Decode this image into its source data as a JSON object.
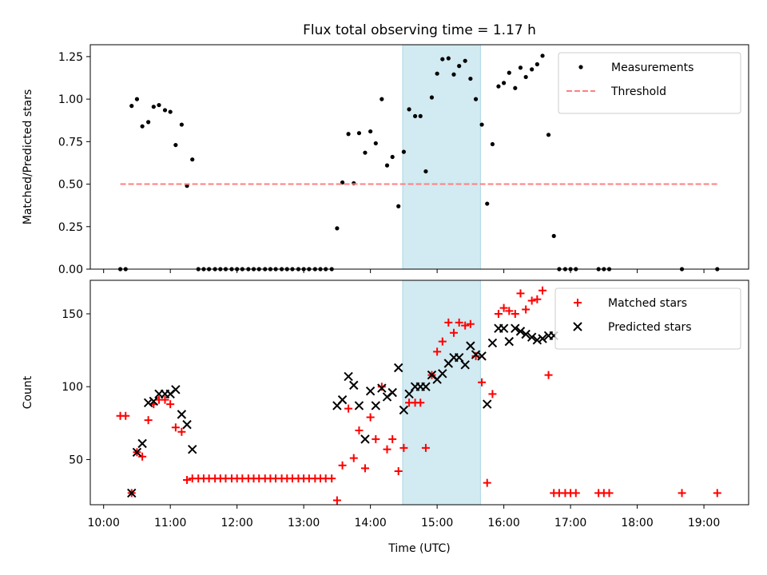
{
  "figure": {
    "title": "Flux total observing time = 1.17 h",
    "xlabel": "Time (UTC)",
    "x_ticks": [
      "10:00",
      "11:00",
      "12:00",
      "13:00",
      "14:00",
      "15:00",
      "16:00",
      "17:00",
      "18:00",
      "19:00"
    ],
    "shaded_interval": [
      "14:29",
      "15:39"
    ],
    "shade_color": "#add8e6"
  },
  "chart_data": [
    {
      "type": "scatter",
      "x_units": "time of day (UTC), hours",
      "xlim": [
        9.8,
        19.67
      ],
      "ylabel": "Matched/Predicted stars",
      "ylim": [
        0,
        1.32
      ],
      "y_ticks": [
        "0.00",
        "0.25",
        "0.50",
        "0.75",
        "1.00",
        "1.25"
      ],
      "legend": "top-right",
      "series": [
        {
          "name": "Measurements",
          "color": "#000000",
          "marker": "dot",
          "x": [
            10.25,
            10.33,
            10.42,
            10.5,
            10.58,
            10.67,
            10.75,
            10.83,
            10.92,
            11.0,
            11.08,
            11.17,
            11.25,
            11.33,
            11.42,
            11.5,
            11.58,
            11.67,
            11.75,
            11.83,
            11.92,
            12.0,
            12.08,
            12.17,
            12.25,
            12.33,
            12.42,
            12.5,
            12.58,
            12.67,
            12.75,
            12.83,
            12.92,
            13.0,
            13.08,
            13.17,
            13.25,
            13.33,
            13.42,
            13.5,
            13.58,
            13.67,
            13.75,
            13.83,
            13.92,
            14.0,
            14.08,
            14.17,
            14.25,
            14.33,
            14.42,
            14.5,
            14.58,
            14.67,
            14.75,
            14.83,
            14.92,
            15.0,
            15.08,
            15.17,
            15.25,
            15.33,
            15.42,
            15.5,
            15.58,
            15.67,
            15.75,
            15.83,
            15.92,
            16.0,
            16.08,
            16.17,
            16.25,
            16.33,
            16.42,
            16.5,
            16.58,
            16.67,
            16.75,
            16.83,
            16.92,
            17.0,
            17.08,
            17.42,
            17.5,
            17.58,
            18.67,
            19.2
          ],
          "y": [
            0,
            0,
            0.96,
            1.0,
            0.84,
            0.865,
            0.955,
            0.965,
            0.935,
            0.925,
            0.73,
            0.85,
            0.49,
            0.645,
            0,
            0,
            0,
            0,
            0,
            0,
            0,
            0,
            0,
            0,
            0,
            0,
            0,
            0,
            0,
            0,
            0,
            0,
            0,
            0,
            0,
            0,
            0,
            0,
            0,
            0.24,
            0.51,
            0.795,
            0.505,
            0.8,
            0.685,
            0.81,
            0.74,
            1.0,
            0.61,
            0.66,
            0.37,
            0.69,
            0.94,
            0.9,
            0.9,
            0.575,
            1.01,
            1.15,
            1.235,
            1.24,
            1.145,
            1.195,
            1.225,
            1.12,
            1.0,
            0.85,
            0.385,
            0.735,
            1.075,
            1.095,
            1.155,
            1.065,
            1.185,
            1.13,
            1.175,
            1.205,
            1.255,
            0.79,
            0.195,
            0,
            0,
            0,
            0,
            0,
            0,
            0,
            0,
            0
          ]
        },
        {
          "name": "Threshold",
          "color": "#ff7f7f",
          "style": "dashed",
          "x": [
            10.25,
            19.2
          ],
          "y": [
            0.5,
            0.5
          ]
        }
      ]
    },
    {
      "type": "scatter",
      "x_units": "time of day (UTC), hours",
      "xlim": [
        9.8,
        19.67
      ],
      "ylabel": "Count",
      "ylim": [
        19,
        173
      ],
      "y_ticks": [
        "50",
        "100",
        "150"
      ],
      "legend": "top-right",
      "series": [
        {
          "name": "Matched stars",
          "color": "#ff0000",
          "marker": "plus",
          "x": [
            10.25,
            10.33,
            10.42,
            10.5,
            10.58,
            10.67,
            10.75,
            10.83,
            10.92,
            11.0,
            11.08,
            11.17,
            11.25,
            11.33,
            11.42,
            11.5,
            11.58,
            11.67,
            11.75,
            11.83,
            11.92,
            12.0,
            12.08,
            12.17,
            12.25,
            12.33,
            12.42,
            12.5,
            12.58,
            12.67,
            12.75,
            12.83,
            12.92,
            13.0,
            13.08,
            13.17,
            13.25,
            13.33,
            13.42,
            13.5,
            13.58,
            13.67,
            13.75,
            13.83,
            13.92,
            14.0,
            14.08,
            14.17,
            14.25,
            14.33,
            14.42,
            14.5,
            14.58,
            14.67,
            14.75,
            14.83,
            14.92,
            15.0,
            15.08,
            15.17,
            15.25,
            15.33,
            15.42,
            15.5,
            15.58,
            15.67,
            15.75,
            15.83,
            15.92,
            16.0,
            16.08,
            16.17,
            16.25,
            16.33,
            16.42,
            16.5,
            16.58,
            16.67,
            16.75,
            16.83,
            16.92,
            17.0,
            17.08,
            17.42,
            17.5,
            17.58,
            18.67,
            19.2
          ],
          "y": [
            80,
            80,
            27,
            55,
            52,
            77,
            88,
            91,
            91,
            88,
            72,
            69,
            36,
            37,
            37,
            37,
            37,
            37,
            37,
            37,
            37,
            37,
            37,
            37,
            37,
            37,
            37,
            37,
            37,
            37,
            37,
            37,
            37,
            37,
            37,
            37,
            37,
            37,
            37,
            22,
            46,
            85,
            51,
            70,
            44,
            79,
            64,
            100,
            57,
            64,
            42,
            58,
            89,
            89,
            89,
            58,
            108,
            124,
            131,
            144,
            137,
            144,
            142,
            143,
            121,
            103,
            34,
            95,
            150,
            154,
            152,
            150,
            164,
            153,
            159,
            160,
            166,
            108,
            27,
            27,
            27,
            27,
            27,
            27,
            27,
            27,
            27,
            27
          ]
        },
        {
          "name": "Predicted stars",
          "color": "#000000",
          "marker": "x",
          "x": [
            10.42,
            10.5,
            10.58,
            10.67,
            10.75,
            10.83,
            10.92,
            11.0,
            11.08,
            11.17,
            11.25,
            11.33,
            13.5,
            13.58,
            13.67,
            13.75,
            13.83,
            13.92,
            14.0,
            14.08,
            14.17,
            14.25,
            14.33,
            14.42,
            14.5,
            14.58,
            14.67,
            14.75,
            14.83,
            14.92,
            15.0,
            15.08,
            15.17,
            15.25,
            15.33,
            15.42,
            15.5,
            15.58,
            15.67,
            15.75,
            15.83,
            15.92,
            16.0,
            16.08,
            16.17,
            16.25,
            16.33,
            16.42,
            16.5,
            16.58,
            16.67,
            16.75
          ],
          "y": [
            27,
            55,
            61,
            89,
            90,
            95,
            95,
            95,
            98,
            81,
            74,
            57,
            87,
            91,
            107,
            101,
            87,
            64,
            97,
            87,
            99,
            93,
            96,
            113,
            84,
            95,
            100,
            100,
            100,
            108,
            105,
            109,
            116,
            120,
            120,
            115,
            128,
            122,
            121,
            88,
            130,
            140,
            140,
            131,
            140,
            138,
            136,
            134,
            132,
            133,
            135,
            135
          ]
        }
      ]
    }
  ]
}
